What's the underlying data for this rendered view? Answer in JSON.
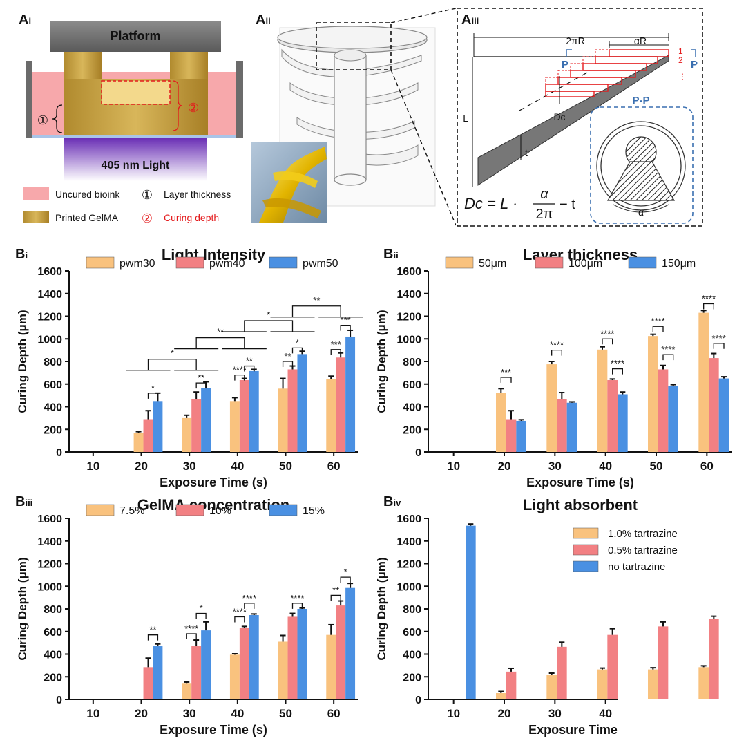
{
  "panel_labels": {
    "ai": "A",
    "ai_sub": "i",
    "aii": "A",
    "aii_sub": "ii",
    "aiii": "A",
    "aiii_sub": "iii",
    "bi": "B",
    "bi_sub": "i",
    "bii": "B",
    "bii_sub": "ii",
    "biii": "B",
    "biii_sub": "iii",
    "biv": "B",
    "biv_sub": "iv"
  },
  "schematic_ai": {
    "platform": "Platform",
    "light": "405 nm Light",
    "marker_1": "①",
    "marker_2": "②",
    "legend_uncured": "Uncured bioink",
    "legend_printed": "Printed GelMA",
    "legend_layer_marker": "①",
    "legend_layer": "Layer thickness",
    "legend_depth_marker": "②",
    "legend_depth": "Curing depth"
  },
  "schematic_aiii": {
    "label_2piR": "2πR",
    "label_alphaR": "αR",
    "label_P_left": "P",
    "label_P_right": "P",
    "label_1": "1",
    "label_2": "2",
    "label_dots": "⋮",
    "label_L": "L",
    "label_Dc": "Dc",
    "label_t": "t",
    "section_title": "P-P",
    "section_alpha": "α",
    "formula_lhs": "Dc = L ·",
    "formula_num": "α",
    "formula_den": "2π",
    "formula_rhs": "− t"
  },
  "colors": {
    "orange": "#F9C27E",
    "red": "#F28083",
    "blue": "#4A90E2",
    "pink_bioink": "#F7A8AB",
    "gold": "#C9A24A",
    "purple": "#7B3FC0",
    "dash_blue": "#3A6FB0",
    "step_red": "#E41A1C"
  },
  "chart_data": [
    {
      "id": "bi",
      "type": "bar",
      "title": "Light Intensity",
      "xlabel": "Exposure Time (s)",
      "ylabel": "Curing Depth (μm)",
      "ylim": [
        0,
        1600
      ],
      "yticks": [
        "0",
        "200",
        "400",
        "600",
        "800",
        "1000",
        "1200",
        "1400",
        "1600"
      ],
      "categories": [
        "10",
        "20",
        "30",
        "40",
        "50",
        "60"
      ],
      "legend_placement": "top",
      "series": [
        {
          "name": "pwm30",
          "color": "#F9C27E",
          "values": [
            0,
            170,
            300,
            450,
            560,
            645
          ],
          "errors": [
            0,
            10,
            25,
            30,
            90,
            25
          ]
        },
        {
          "name": "pwm40",
          "color": "#F28083",
          "values": [
            0,
            290,
            470,
            635,
            730,
            835
          ],
          "errors": [
            0,
            75,
            60,
            15,
            30,
            40
          ]
        },
        {
          "name": "pwm50",
          "color": "#4A90E2",
          "values": [
            0,
            450,
            565,
            715,
            865,
            1020
          ],
          "errors": [
            0,
            70,
            55,
            15,
            25,
            55
          ]
        }
      ],
      "annotations": [
        "*",
        "**",
        "**",
        "****",
        "**",
        "**",
        "*",
        "***",
        "***",
        "*",
        "**",
        "*",
        "**"
      ]
    },
    {
      "id": "bii",
      "type": "bar",
      "title": "Layer thickness",
      "xlabel": "Exposure Time (s)",
      "ylabel": "Curing Depth (μm)",
      "ylim": [
        0,
        1600
      ],
      "yticks": [
        "0",
        "200",
        "400",
        "600",
        "800",
        "1000",
        "1200",
        "1400",
        "1600"
      ],
      "categories": [
        "10",
        "20",
        "30",
        "40",
        "50",
        "60"
      ],
      "legend_placement": "top",
      "series": [
        {
          "name": "50μm",
          "color": "#F9C27E",
          "values": [
            0,
            525,
            775,
            905,
            1025,
            1230
          ],
          "errors": [
            0,
            35,
            25,
            25,
            15,
            20
          ]
        },
        {
          "name": "100μm",
          "color": "#F28083",
          "values": [
            0,
            290,
            470,
            635,
            730,
            830
          ],
          "errors": [
            0,
            75,
            55,
            10,
            35,
            40
          ]
        },
        {
          "name": "150μm",
          "color": "#4A90E2",
          "values": [
            0,
            275,
            435,
            510,
            585,
            650
          ],
          "errors": [
            0,
            10,
            8,
            20,
            10,
            15
          ]
        }
      ],
      "annotations": [
        "***",
        "****",
        "****",
        "****",
        "****",
        "****",
        "****",
        "****"
      ]
    },
    {
      "id": "biii",
      "type": "bar",
      "title": "GelMA concentration",
      "xlabel": "Exposure Time (s)",
      "ylabel": "Curing Depth (μm)",
      "ylim": [
        0,
        1600
      ],
      "yticks": [
        "0",
        "200",
        "400",
        "600",
        "800",
        "1000",
        "1200",
        "1400",
        "1600"
      ],
      "categories": [
        "10",
        "20",
        "30",
        "40",
        "50",
        "60"
      ],
      "legend_placement": "top",
      "series": [
        {
          "name": "7.5%",
          "color": "#F9C27E",
          "values": [
            0,
            0,
            145,
            395,
            510,
            570
          ],
          "errors": [
            0,
            0,
            8,
            8,
            55,
            90
          ]
        },
        {
          "name": "10%",
          "color": "#F28083",
          "values": [
            0,
            285,
            470,
            630,
            730,
            830
          ],
          "errors": [
            0,
            80,
            55,
            15,
            30,
            40
          ]
        },
        {
          "name": "15%",
          "color": "#4A90E2",
          "values": [
            0,
            470,
            610,
            745,
            800,
            985
          ],
          "errors": [
            0,
            20,
            75,
            10,
            8,
            40
          ]
        }
      ],
      "annotations": [
        "**",
        "****",
        "*",
        "****",
        "****",
        "****",
        "**",
        "*"
      ]
    },
    {
      "id": "biv",
      "type": "bar",
      "title": "Light absorbent",
      "xlabel": "Exposure Time (s",
      "ylabel": "Curing Depth (μm)",
      "ylim": [
        0,
        1600
      ],
      "yticks": [
        "0",
        "200",
        "400",
        "600",
        "800",
        "1000",
        "1200",
        "1400",
        "1600"
      ],
      "categories": [
        "10",
        "20",
        "30",
        "40",
        "",
        ""
      ],
      "legend_placement": "top-right",
      "series": [
        {
          "name": "1.0% tartrazine",
          "color": "#F9C27E",
          "values": [
            0,
            55,
            220,
            265,
            265,
            285
          ],
          "errors": [
            0,
            15,
            12,
            12,
            15,
            12
          ]
        },
        {
          "name": "0.5% tartrazine",
          "color": "#F28083",
          "values": [
            0,
            245,
            465,
            570,
            645,
            710
          ],
          "errors": [
            0,
            30,
            40,
            55,
            40,
            25
          ]
        },
        {
          "name": "no  tartrazine",
          "color": "#4A90E2",
          "values": [
            1535,
            0,
            0,
            0,
            0,
            0
          ],
          "errors": [
            15,
            0,
            0,
            0,
            0,
            0
          ]
        }
      ],
      "annotations": []
    }
  ]
}
